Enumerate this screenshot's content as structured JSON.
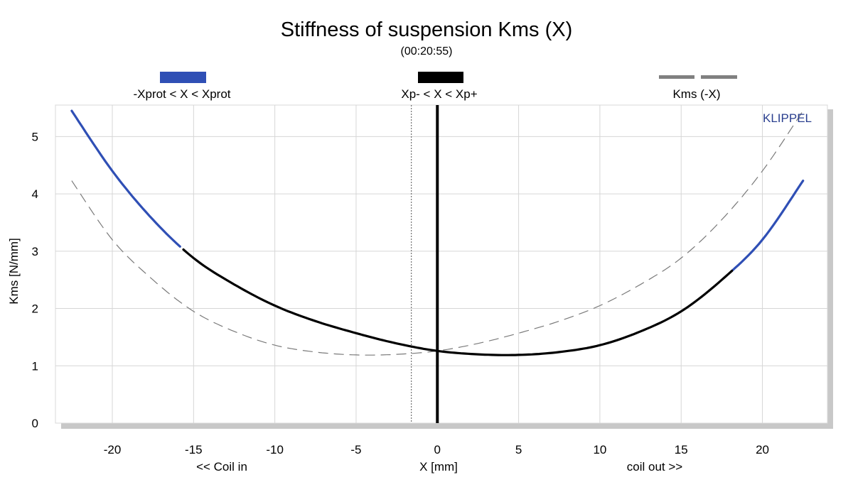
{
  "chart_data": {
    "type": "line",
    "title": "Stiffness of suspension Kms (X)",
    "subtitle": "(00:20:55)",
    "xlabel": "X [mm]",
    "xlabel_left": "<< Coil in",
    "xlabel_right": "coil out >>",
    "ylabel": "Kms [N/mm]",
    "watermark": "KLIPPEL",
    "xlim": [
      -23.5,
      24
    ],
    "ylim": [
      0,
      5.55
    ],
    "xticks": [
      -20,
      -15,
      -10,
      -5,
      0,
      5,
      10,
      15,
      20
    ],
    "yticks": [
      0,
      1,
      2,
      3,
      4,
      5
    ],
    "grid": true,
    "xprot_limits": [
      -15.7,
      18.1
    ],
    "xp_minus": -1.6,
    "legend": [
      {
        "label": "-Xprot < X < Xprot",
        "color": "#2f4fb5",
        "style": "solid"
      },
      {
        "label": "Xp- < X < Xp+",
        "color": "#000000",
        "style": "solid"
      },
      {
        "label": "Kms (-X)",
        "color": "#808080",
        "style": "dashed"
      }
    ],
    "series": [
      {
        "name": "Kms (X)",
        "x": [
          -22.5,
          -20,
          -17.5,
          -15,
          -12.5,
          -10,
          -7.5,
          -5,
          -2.5,
          0,
          2.5,
          5,
          7.5,
          10,
          12.5,
          15,
          17.5,
          20,
          22.5
        ],
        "y": [
          5.45,
          4.4,
          3.55,
          2.88,
          2.42,
          2.05,
          1.78,
          1.57,
          1.39,
          1.26,
          1.2,
          1.19,
          1.24,
          1.36,
          1.6,
          1.95,
          2.5,
          3.2,
          4.23
        ]
      },
      {
        "name": "Kms (-X)",
        "x": [
          -22.5,
          -20,
          -17.5,
          -15,
          -12.5,
          -10,
          -7.5,
          -5,
          -2.5,
          0,
          2.5,
          5,
          7.5,
          10,
          12.5,
          15,
          17.5,
          20,
          22.5
        ],
        "y": [
          4.23,
          3.2,
          2.5,
          1.95,
          1.6,
          1.36,
          1.24,
          1.19,
          1.2,
          1.26,
          1.39,
          1.57,
          1.78,
          2.05,
          2.42,
          2.88,
          3.55,
          4.4,
          5.45
        ]
      }
    ]
  }
}
